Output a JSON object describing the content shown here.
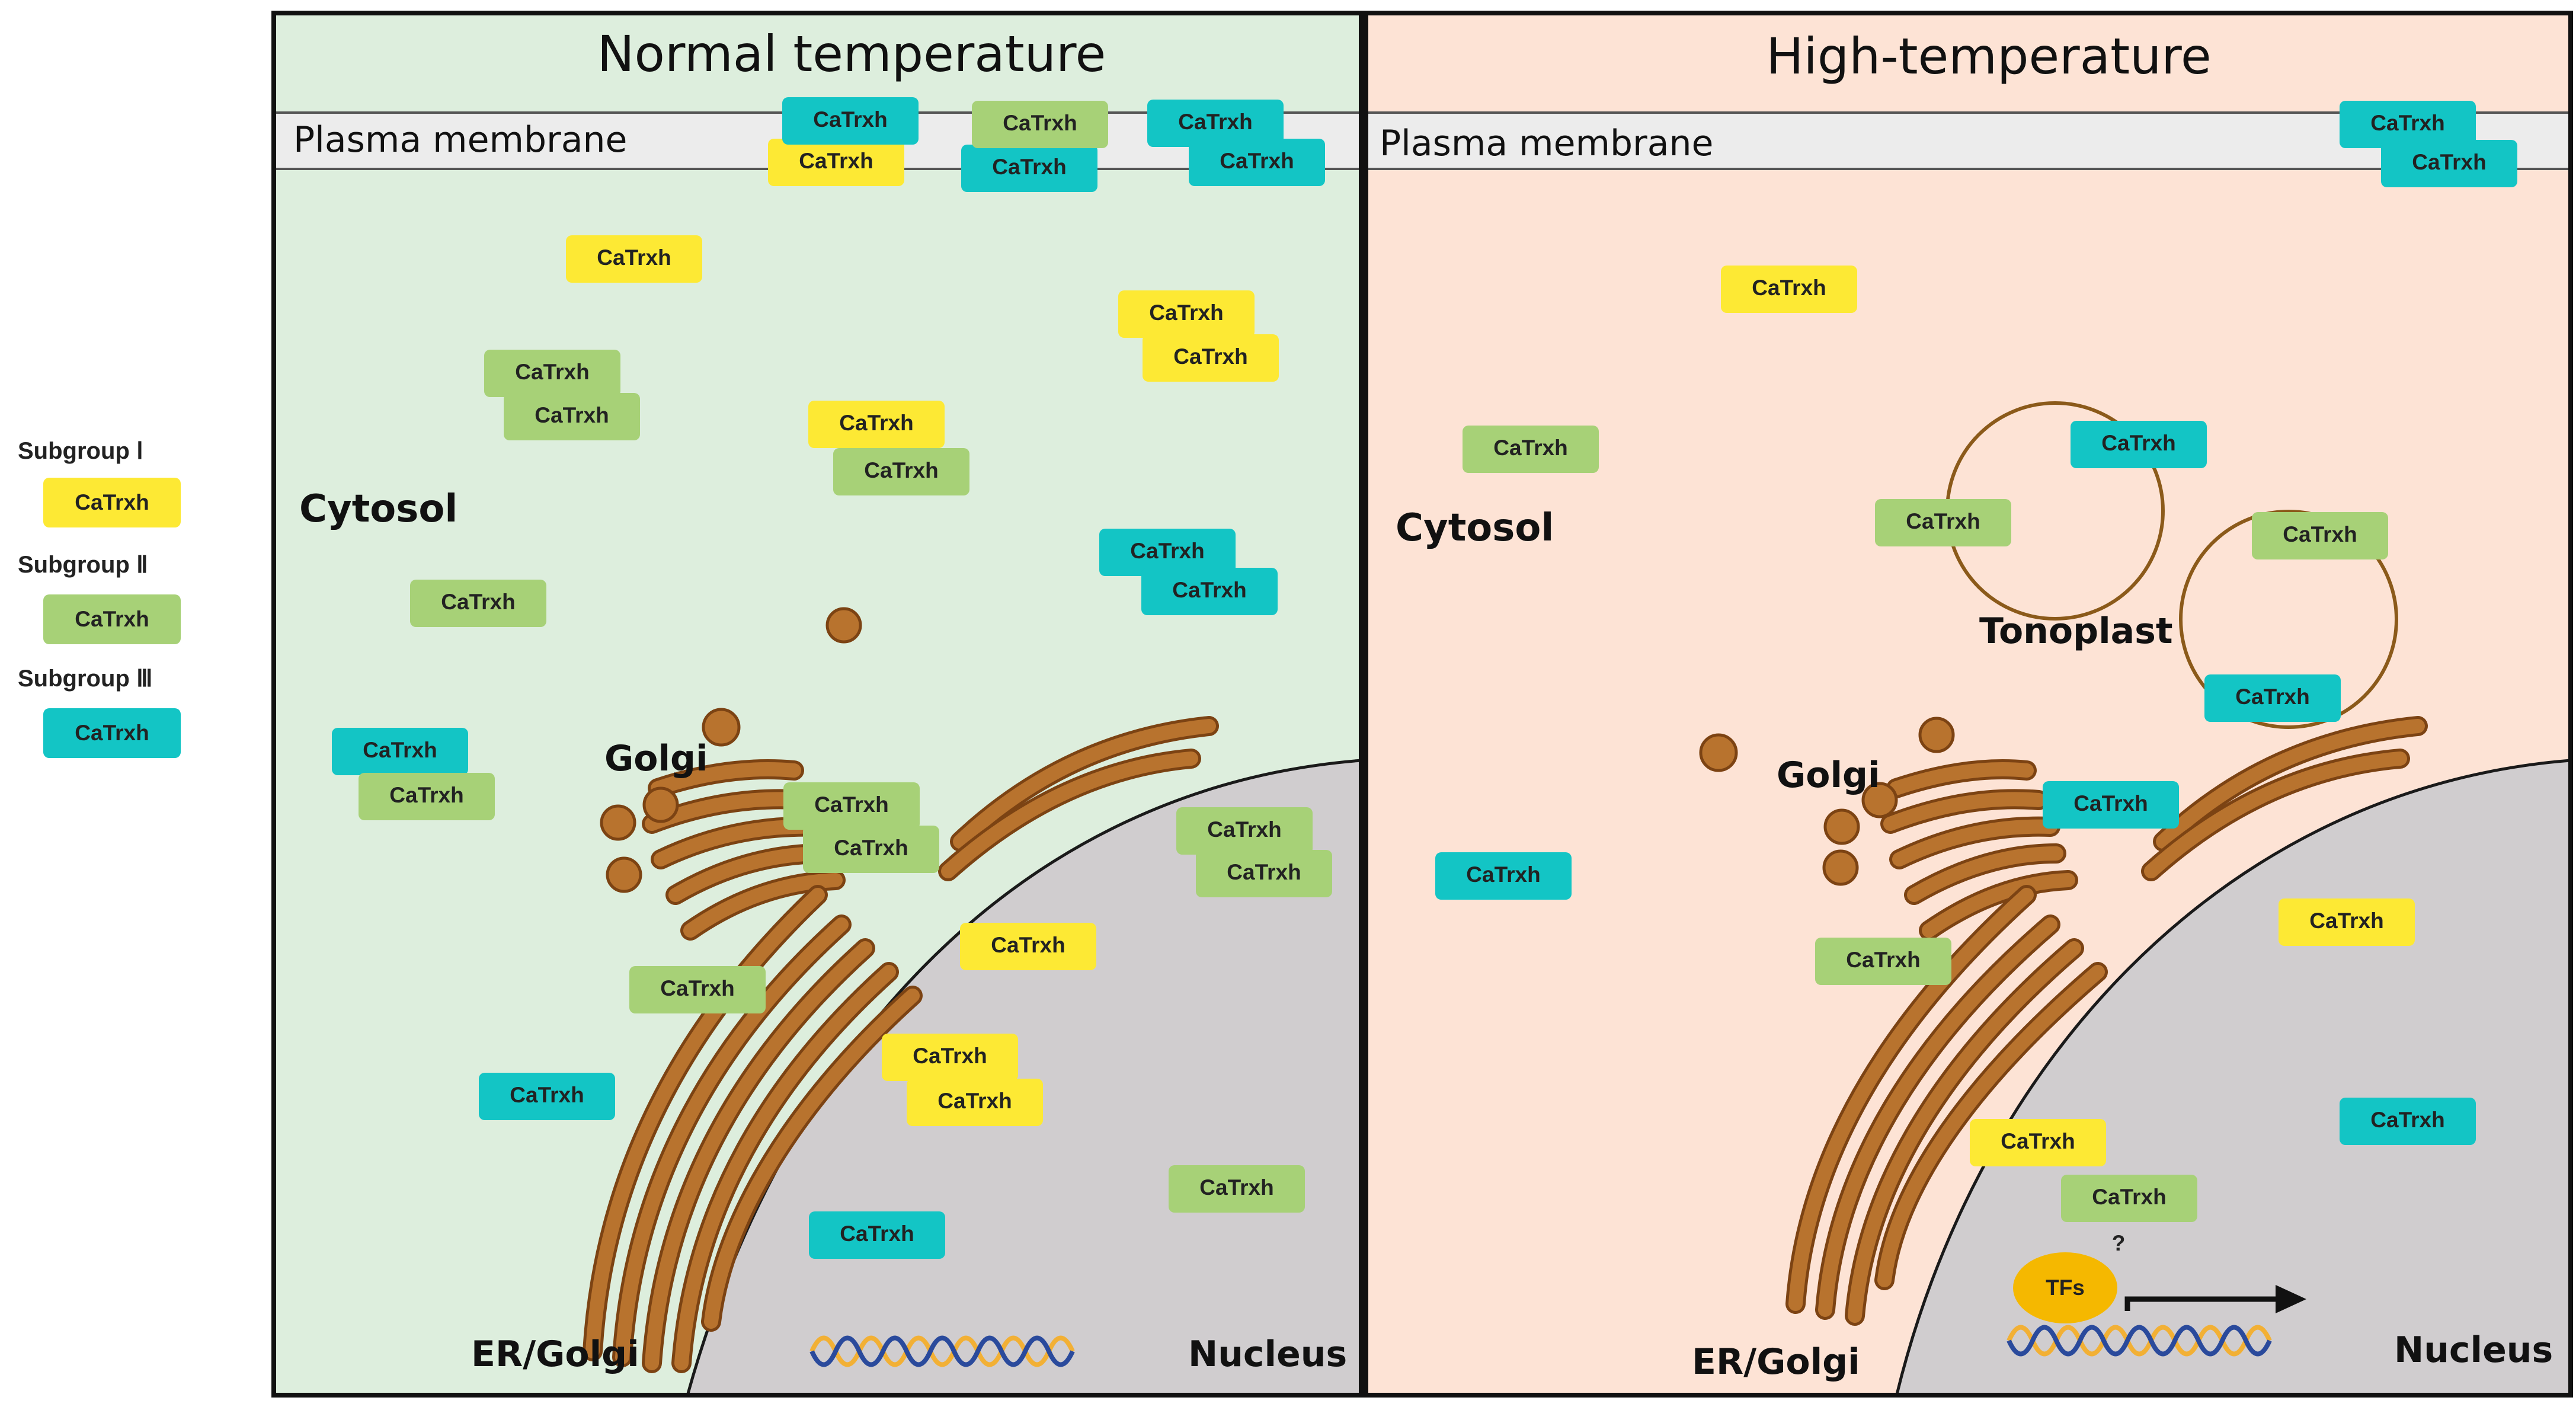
{
  "palette": {
    "subgroup1": "#fde934",
    "subgroup2": "#a7d177",
    "subgroup3": "#13c5c5",
    "normal_bg": "#ddeedd",
    "high_bg": "#fde3d5",
    "organelle": "#b8732e",
    "organelle_edge": "#7c4313",
    "nucleus": "#d0cdcf"
  },
  "legend": [
    {
      "group": "Subgroup Ⅰ",
      "label": "CaTrxh",
      "color_key": "subgroup1"
    },
    {
      "group": "Subgroup Ⅱ",
      "label": "CaTrxh",
      "color_key": "subgroup2"
    },
    {
      "group": "Subgroup Ⅲ",
      "label": "CaTrxh",
      "color_key": "subgroup3"
    }
  ],
  "panels": {
    "normal": {
      "title": "Normal temperature",
      "membrane": "Plasma membrane",
      "cytosol": "Cytosol",
      "golgi": "Golgi",
      "er_golgi": "ER/Golgi",
      "nucleus": "Nucleus"
    },
    "high": {
      "title": "High-temperature",
      "membrane": "Plasma membrane",
      "cytosol": "Cytosol",
      "golgi": "Golgi",
      "tonoplast": "Tonoplast",
      "er_golgi": "ER/Golgi",
      "nucleus": "Nucleus",
      "tf": "TFs",
      "question": "?"
    }
  },
  "protein_label": "CaTrxh"
}
